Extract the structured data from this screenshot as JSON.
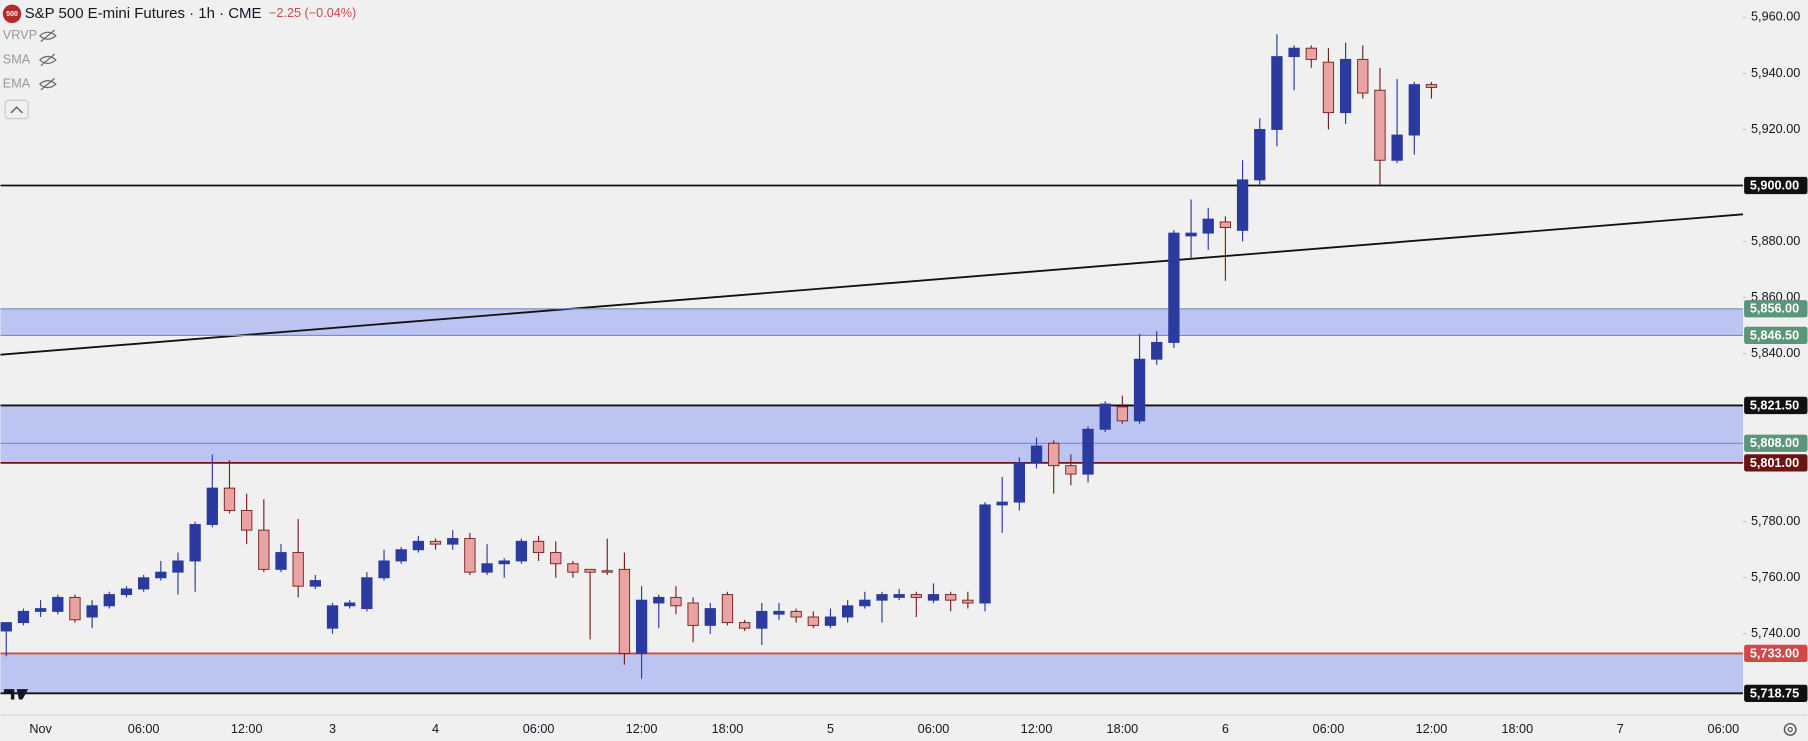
{
  "chart_data": {
    "type": "candlestick",
    "badge": "500",
    "title": "S&P 500 E-mini Futures · 1h · CME",
    "change": "−2.25 (−0.04%)",
    "indicators": [
      "VRVP",
      "SMA",
      "EMA"
    ],
    "grid": false,
    "up_color": "#2b3a9e",
    "down_color": "#e9a3a3",
    "down_border": "#7a1f1f",
    "zone_color": "#bcc4f2",
    "categories": [
      null,
      null,
      "Nov",
      null,
      null,
      null,
      null,
      null,
      "06:00",
      null,
      null,
      null,
      null,
      null,
      "12:00",
      null,
      null,
      null,
      null,
      "3",
      null,
      null,
      null,
      null,
      null,
      "4",
      null,
      null,
      null,
      null,
      null,
      "06:00",
      null,
      null,
      null,
      null,
      null,
      "12:00",
      null,
      null,
      null,
      null,
      "18:00",
      null,
      null,
      null,
      null,
      null,
      "5",
      null,
      null,
      null,
      null,
      null,
      "06:00",
      null,
      null,
      null,
      null,
      null,
      "12:00",
      null,
      null,
      null,
      null,
      "18:00",
      null,
      null,
      null,
      null,
      null,
      "6",
      null,
      null,
      null,
      null,
      null,
      "06:00",
      null,
      null,
      null,
      null,
      null,
      "12:00",
      null,
      null,
      null,
      null,
      "18:00",
      null,
      null,
      null,
      null,
      null,
      "7",
      null,
      null,
      null,
      null,
      null,
      "06:00"
    ],
    "open": [
      5741,
      5744,
      5748,
      5748,
      5753,
      5746,
      5750,
      5754,
      5756,
      5760,
      5762,
      5766,
      5779,
      5792,
      5784,
      5777,
      5763,
      5769,
      5757,
      5742,
      5750,
      5749,
      5760,
      5766,
      5770,
      5773,
      5772,
      5774,
      5762,
      5765,
      5766,
      5773,
      5769,
      5765,
      5763,
      5762.5,
      5763,
      5733,
      5751,
      5753,
      5751,
      5743,
      5754,
      5744,
      5742,
      5747,
      5748,
      5746,
      5743,
      5746,
      5750,
      5752,
      5753,
      5754,
      5752,
      5754,
      5752,
      5751,
      5786,
      5787,
      5801,
      5808,
      5800,
      5797,
      5813,
      5821,
      5816,
      5838,
      5844,
      5882,
      5883,
      5887,
      5884,
      5902,
      5920,
      5946,
      5949,
      5944,
      5926,
      5945,
      5934,
      5909,
      5918,
      5936,
      null,
      null,
      null,
      null,
      null,
      null,
      null,
      null,
      null,
      null,
      null,
      null,
      null,
      null,
      null,
      null,
      null
    ],
    "high": [
      5744,
      5749,
      5752,
      5754,
      5754,
      5752,
      5755,
      5757,
      5761,
      5766,
      5769,
      5780,
      5804,
      5802,
      5790,
      5788,
      5772,
      5781,
      5761,
      5751,
      5752,
      5762,
      5770,
      5771,
      5775,
      5774,
      5777,
      5776,
      5772,
      5767,
      5774,
      5775,
      5773,
      5766,
      5763,
      5774,
      5769,
      5757,
      5754,
      5757,
      5753,
      5751,
      5755,
      5745,
      5751,
      5751,
      5749,
      5748,
      5749,
      5752,
      5755,
      5755,
      5756,
      5755,
      5758,
      5755,
      5755,
      5787,
      5796,
      5803,
      5810,
      5809,
      5804,
      5814,
      5823,
      5825,
      5847,
      5848,
      5884,
      5895,
      5892,
      5889,
      5909,
      5924,
      5954,
      5950,
      5950,
      5949,
      5951,
      5950,
      5942,
      5938,
      5937,
      5937,
      null,
      null,
      null,
      null,
      null,
      null,
      null,
      null,
      null,
      null,
      null,
      null,
      null,
      null,
      null,
      null,
      null
    ],
    "low": [
      5732,
      5743,
      5746,
      5747,
      5744,
      5742,
      5749,
      5753,
      5755,
      5759,
      5754,
      5755,
      5778,
      5783,
      5772,
      5762,
      5762,
      5753,
      5756,
      5740,
      5749,
      5748,
      5759,
      5765,
      5769,
      5770,
      5770,
      5761,
      5761,
      5760,
      5765,
      5766,
      5760,
      5760,
      5738,
      5761,
      5729,
      5724,
      5742,
      5747,
      5737,
      5740,
      5743,
      5741,
      5736,
      5745,
      5744,
      5742,
      5742,
      5744,
      5749,
      5744,
      5752,
      5746,
      5751,
      5748,
      5749,
      5748,
      5776,
      5784,
      5799,
      5790,
      5793,
      5794,
      5812,
      5815,
      5815,
      5836,
      5842,
      5874,
      5877,
      5866,
      5880,
      5900,
      5914,
      5934,
      5942,
      5920,
      5922,
      5931,
      5900,
      5908,
      5911,
      5931,
      null,
      null,
      null,
      null,
      null,
      null,
      null,
      null,
      null,
      null,
      null,
      null,
      null,
      null,
      null,
      null,
      null
    ],
    "close": [
      5744,
      5748,
      5749,
      5753,
      5745,
      5750,
      5754,
      5756,
      5760,
      5762,
      5766,
      5779,
      5792,
      5784,
      5777,
      5763,
      5769,
      5757,
      5759,
      5750,
      5751,
      5760,
      5766,
      5770,
      5773,
      5772,
      5774,
      5762,
      5765,
      5766,
      5773,
      5769,
      5765,
      5762,
      5762,
      5762,
      5733,
      5752,
      5753,
      5750,
      5743,
      5749,
      5744,
      5742,
      5748,
      5748,
      5746,
      5743,
      5746,
      5750,
      5752,
      5754,
      5754,
      5753,
      5754,
      5752,
      5751,
      5786,
      5787,
      5801,
      5807,
      5800,
      5797,
      5813,
      5822,
      5816,
      5838,
      5844,
      5883,
      5883,
      5888,
      5885,
      5902,
      5920,
      5946,
      5949,
      5945,
      5926,
      5945,
      5933,
      5909,
      5918,
      5936,
      5935,
      null,
      null,
      null,
      null,
      null,
      null,
      null,
      null,
      null,
      null,
      null,
      null,
      null,
      null,
      null,
      null,
      null
    ],
    "ylim": [
      5711.2,
      5966.2
    ],
    "yticks": [
      {
        "value": 5740,
        "label": "5,740.00"
      },
      {
        "value": 5760,
        "label": "5,760.00"
      },
      {
        "value": 5780,
        "label": "5,780.00"
      },
      {
        "value": 5840,
        "label": "5,840.00"
      },
      {
        "value": 5860,
        "label": "5,860.00"
      },
      {
        "value": 5880,
        "label": "5,880.00"
      },
      {
        "value": 5920,
        "label": "5,920.00"
      },
      {
        "value": 5940,
        "label": "5,940.00"
      },
      {
        "value": 5960,
        "label": "5,960.00"
      }
    ],
    "zones": [
      {
        "from": 5846.5,
        "to": 5856
      },
      {
        "from": 5801,
        "to": 5821.5
      },
      {
        "from": 5718.75,
        "to": 5733
      }
    ],
    "levels": [
      {
        "value": 5900,
        "label": "5,900.00",
        "color": "#111111",
        "line": "#111111"
      },
      {
        "value": 5856,
        "label": "5,856.00",
        "color": "#5b957a",
        "line": "#7c89c9"
      },
      {
        "value": 5846.5,
        "label": "5,846.50",
        "color": "#5b957a",
        "line": "#7c89c9"
      },
      {
        "value": 5821.5,
        "label": "5,821.50",
        "color": "#111111",
        "line": "#111111"
      },
      {
        "value": 5808,
        "label": "5,808.00",
        "color": "#5b957a",
        "line": "#7c89c9"
      },
      {
        "value": 5801,
        "label": "5,801.00",
        "color": "#6b1414",
        "line": "#6b1414"
      },
      {
        "value": 5733,
        "label": "5,733.00",
        "color": "#d04848",
        "line": "#d04848"
      },
      {
        "value": 5718.75,
        "label": "5,718.75",
        "color": "#111111",
        "line": "#111111"
      }
    ],
    "trend_line": {
      "from": 5839.6,
      "to": 5889.7
    }
  }
}
